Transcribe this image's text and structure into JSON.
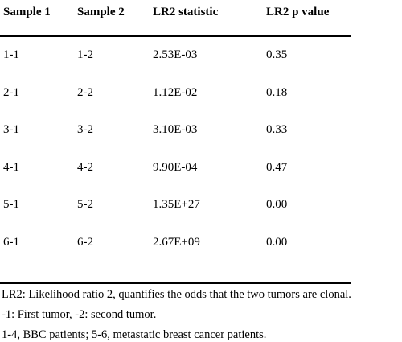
{
  "table": {
    "header": [
      "Sample 1",
      "Sample 2",
      "LR2 statistic",
      "LR2 p value"
    ],
    "rows": [
      [
        "1-1",
        "1-2",
        "2.53E-03",
        "0.35"
      ],
      [
        "2-1",
        "2-2",
        "1.12E-02",
        "0.18"
      ],
      [
        "3-1",
        "3-2",
        "3.10E-03",
        "0.33"
      ],
      [
        "4-1",
        "4-2",
        "9.90E-04",
        "0.47"
      ],
      [
        "5-1",
        "5-2",
        "1.35E+27",
        "0.00"
      ],
      [
        "6-1",
        "6-2",
        "2.67E+09",
        "0.00"
      ]
    ]
  },
  "notes": [
    "LR2: Likelihood ratio 2, quantifies the odds that the two tumors are clonal.",
    "-1: First tumor, -2: second tumor.",
    "1-4, BBC patients; 5-6, metastatic breast cancer patients."
  ]
}
